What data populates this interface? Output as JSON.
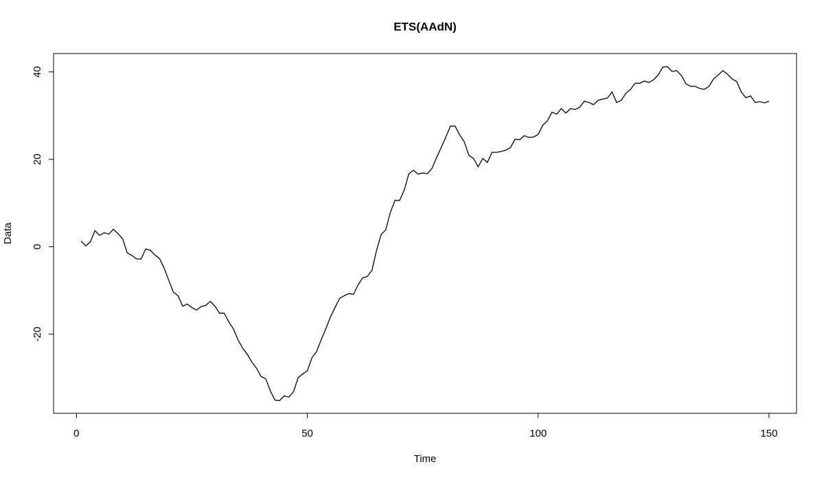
{
  "chart_data": {
    "type": "line",
    "title": "ETS(AAdN)",
    "x_label": "Time",
    "y_label": "Data",
    "x": [
      1,
      2,
      3,
      4,
      5,
      6,
      7,
      8,
      9,
      10,
      11,
      12,
      13,
      14,
      15,
      16,
      17,
      18,
      19,
      20,
      21,
      22,
      23,
      24,
      25,
      26,
      27,
      28,
      29,
      30,
      31,
      32,
      33,
      34,
      35,
      36,
      37,
      38,
      39,
      40,
      41,
      42,
      43,
      44,
      45,
      46,
      47,
      48,
      49,
      50,
      51,
      52,
      53,
      54,
      55,
      56,
      57,
      58,
      59,
      60,
      61,
      62,
      63,
      64,
      65,
      66,
      67,
      68,
      69,
      70,
      71,
      72,
      73,
      74,
      75,
      76,
      77,
      78,
      79,
      80,
      81,
      82,
      83,
      84,
      85,
      86,
      87,
      88,
      89,
      90,
      91,
      92,
      93,
      94,
      95,
      96,
      97,
      98,
      99,
      100,
      101,
      102,
      103,
      104,
      105,
      106,
      107,
      108,
      109,
      110,
      111,
      112,
      113,
      114,
      115,
      116,
      117,
      118,
      119,
      120,
      121,
      122,
      123,
      124,
      125,
      126,
      127,
      128,
      129,
      130,
      131,
      132,
      133,
      134,
      135,
      136,
      137,
      138,
      139,
      140,
      141,
      142,
      143,
      144,
      145,
      146,
      147,
      148,
      149,
      150
    ],
    "values": [
      1.3,
      0.2,
      1.1,
      3.7,
      2.6,
      3.2,
      2.9,
      4.0,
      3.0,
      1.8,
      -1.4,
      -2.0,
      -2.8,
      -2.8,
      -0.5,
      -0.8,
      -1.9,
      -2.7,
      -4.9,
      -7.7,
      -10.4,
      -11.2,
      -13.6,
      -13.1,
      -13.9,
      -14.5,
      -13.7,
      -13.4,
      -12.5,
      -13.6,
      -15.2,
      -15.2,
      -17.2,
      -18.8,
      -21.3,
      -23.2,
      -24.6,
      -26.4,
      -27.8,
      -29.7,
      -30.2,
      -33.0,
      -35.1,
      -35.2,
      -34.1,
      -34.4,
      -33.2,
      -30.0,
      -29.1,
      -28.4,
      -25.4,
      -24.0,
      -21.3,
      -18.8,
      -16.1,
      -13.9,
      -11.8,
      -11.2,
      -10.7,
      -10.9,
      -8.7,
      -7.1,
      -6.8,
      -5.4,
      -0.8,
      2.8,
      3.9,
      7.9,
      10.6,
      10.6,
      13.0,
      16.7,
      17.5,
      16.6,
      16.9,
      16.7,
      17.9,
      20.4,
      22.7,
      25.1,
      27.6,
      27.6,
      25.6,
      24.0,
      20.9,
      20.2,
      18.3,
      20.2,
      19.3,
      21.6,
      21.6,
      21.8,
      22.1,
      22.7,
      24.6,
      24.5,
      25.4,
      25.0,
      25.1,
      25.7,
      27.8,
      28.8,
      30.8,
      30.3,
      31.6,
      30.6,
      31.6,
      31.4,
      31.9,
      33.3,
      33.0,
      32.5,
      33.5,
      33.8,
      34.0,
      35.4,
      33.0,
      33.5,
      35.1,
      36.0,
      37.4,
      37.4,
      37.9,
      37.6,
      38.2,
      39.3,
      41.1,
      41.2,
      40.1,
      40.3,
      39.2,
      37.3,
      36.7,
      36.7,
      36.2,
      36.0,
      36.7,
      38.4,
      39.3,
      40.3,
      39.5,
      38.4,
      37.8,
      35.4,
      34.1,
      34.5,
      33.0,
      33.2,
      32.9,
      33.3
    ],
    "color": "#000000",
    "xlim": [
      -4.96,
      155.96
    ],
    "xticks": [
      0,
      50,
      100,
      150
    ],
    "ylim": [
      -38.1,
      44.2
    ],
    "yticks": [
      -20,
      0,
      20,
      40
    ]
  }
}
